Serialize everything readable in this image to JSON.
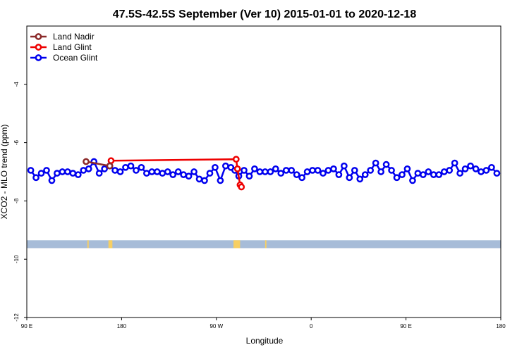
{
  "chart_data": {
    "type": "line",
    "title": "47.5S-42.5S September (Ver 10)   2015-01-01 to 2020-12-18",
    "xlabel": "Longitude",
    "ylabel": "XCO2 - MLO trend (ppm)",
    "xlim": [
      90,
      450
    ],
    "ylim": [
      -12,
      -2
    ],
    "x_ticks": [
      {
        "value": 90,
        "label": "90 E"
      },
      {
        "value": 162,
        "label": "180"
      },
      {
        "value": 234,
        "label": "90 W"
      },
      {
        "value": 306,
        "label": "0"
      },
      {
        "value": 378,
        "label": "90 E"
      },
      {
        "value": 450,
        "label": "180"
      }
    ],
    "y_ticks": [
      {
        "value": -4,
        "label": "-4"
      },
      {
        "value": -6,
        "label": "-6"
      },
      {
        "value": -8,
        "label": "-8"
      },
      {
        "value": -10,
        "label": "-10"
      },
      {
        "value": -12,
        "label": "-12"
      }
    ],
    "grid": false,
    "legend_position": "top-left",
    "land_mask": {
      "y_range": [
        -9.62,
        -9.35
      ],
      "ocean_color": "#a7bcd8",
      "land_color": "#f7cf63",
      "land_lon_ranges": [
        [
          136,
          137
        ],
        [
          152,
          155
        ],
        [
          247,
          252
        ],
        [
          271,
          272
        ],
        [
          455,
          456
        ],
        [
          473,
          476
        ]
      ]
    },
    "series": [
      {
        "name": "Land Nadir",
        "color": "#8b2a2a",
        "x": [
          135,
          153
        ],
        "y": [
          -6.65,
          -6.8
        ]
      },
      {
        "name": "Land Glint",
        "color": "#ee0000",
        "x": [
          154,
          249,
          250,
          252,
          253
        ],
        "y": [
          -6.62,
          -6.57,
          -6.9,
          -7.45,
          -7.52
        ]
      },
      {
        "name": "Ocean Glint",
        "color": "#0000ee",
        "x": [
          93,
          97,
          101,
          105,
          109,
          113,
          117,
          121,
          125,
          129,
          133,
          137,
          141,
          145,
          149,
          153,
          157,
          161,
          165,
          169,
          173,
          177,
          181,
          185,
          189,
          193,
          197,
          201,
          205,
          209,
          213,
          217,
          221,
          225,
          229,
          233,
          237,
          241,
          245,
          248,
          251,
          255,
          259,
          263,
          267,
          271,
          275,
          279,
          283,
          287,
          291,
          295,
          299,
          303,
          307,
          311,
          315,
          319,
          323,
          327,
          331,
          335,
          339,
          343,
          347,
          351,
          355,
          359,
          363,
          367,
          371,
          375,
          379,
          383,
          387,
          391,
          395,
          399,
          403,
          407,
          411,
          415,
          419,
          423,
          427,
          431,
          435,
          439,
          443,
          447
        ],
        "y": [
          -6.95,
          -7.2,
          -7.05,
          -6.95,
          -7.3,
          -7.05,
          -7.0,
          -7.0,
          -7.05,
          -7.1,
          -6.95,
          -6.9,
          -6.65,
          -7.05,
          -6.9,
          -6.8,
          -6.95,
          -7.0,
          -6.85,
          -6.8,
          -6.95,
          -6.85,
          -7.05,
          -7.0,
          -7.0,
          -7.05,
          -7.0,
          -7.1,
          -7.0,
          -7.1,
          -7.15,
          -7.0,
          -7.25,
          -7.3,
          -7.05,
          -6.85,
          -7.3,
          -6.8,
          -6.85,
          -6.95,
          -7.15,
          -6.95,
          -7.15,
          -6.9,
          -7.0,
          -7.0,
          -7.0,
          -6.9,
          -7.05,
          -6.95,
          -6.95,
          -7.1,
          -7.2,
          -7.0,
          -6.95,
          -6.95,
          -7.05,
          -6.95,
          -6.9,
          -7.1,
          -6.8,
          -7.2,
          -6.95,
          -7.25,
          -7.1,
          -6.95,
          -6.7,
          -7.0,
          -6.75,
          -6.95,
          -7.2,
          -7.1,
          -6.9,
          -7.3,
          -7.05,
          -7.1,
          -7.0,
          -7.1,
          -7.1,
          -7.0,
          -6.95,
          -6.7,
          -7.05,
          -6.9,
          -6.8,
          -6.9,
          -7.0,
          -6.95,
          -6.85,
          -7.05
        ]
      }
    ]
  }
}
